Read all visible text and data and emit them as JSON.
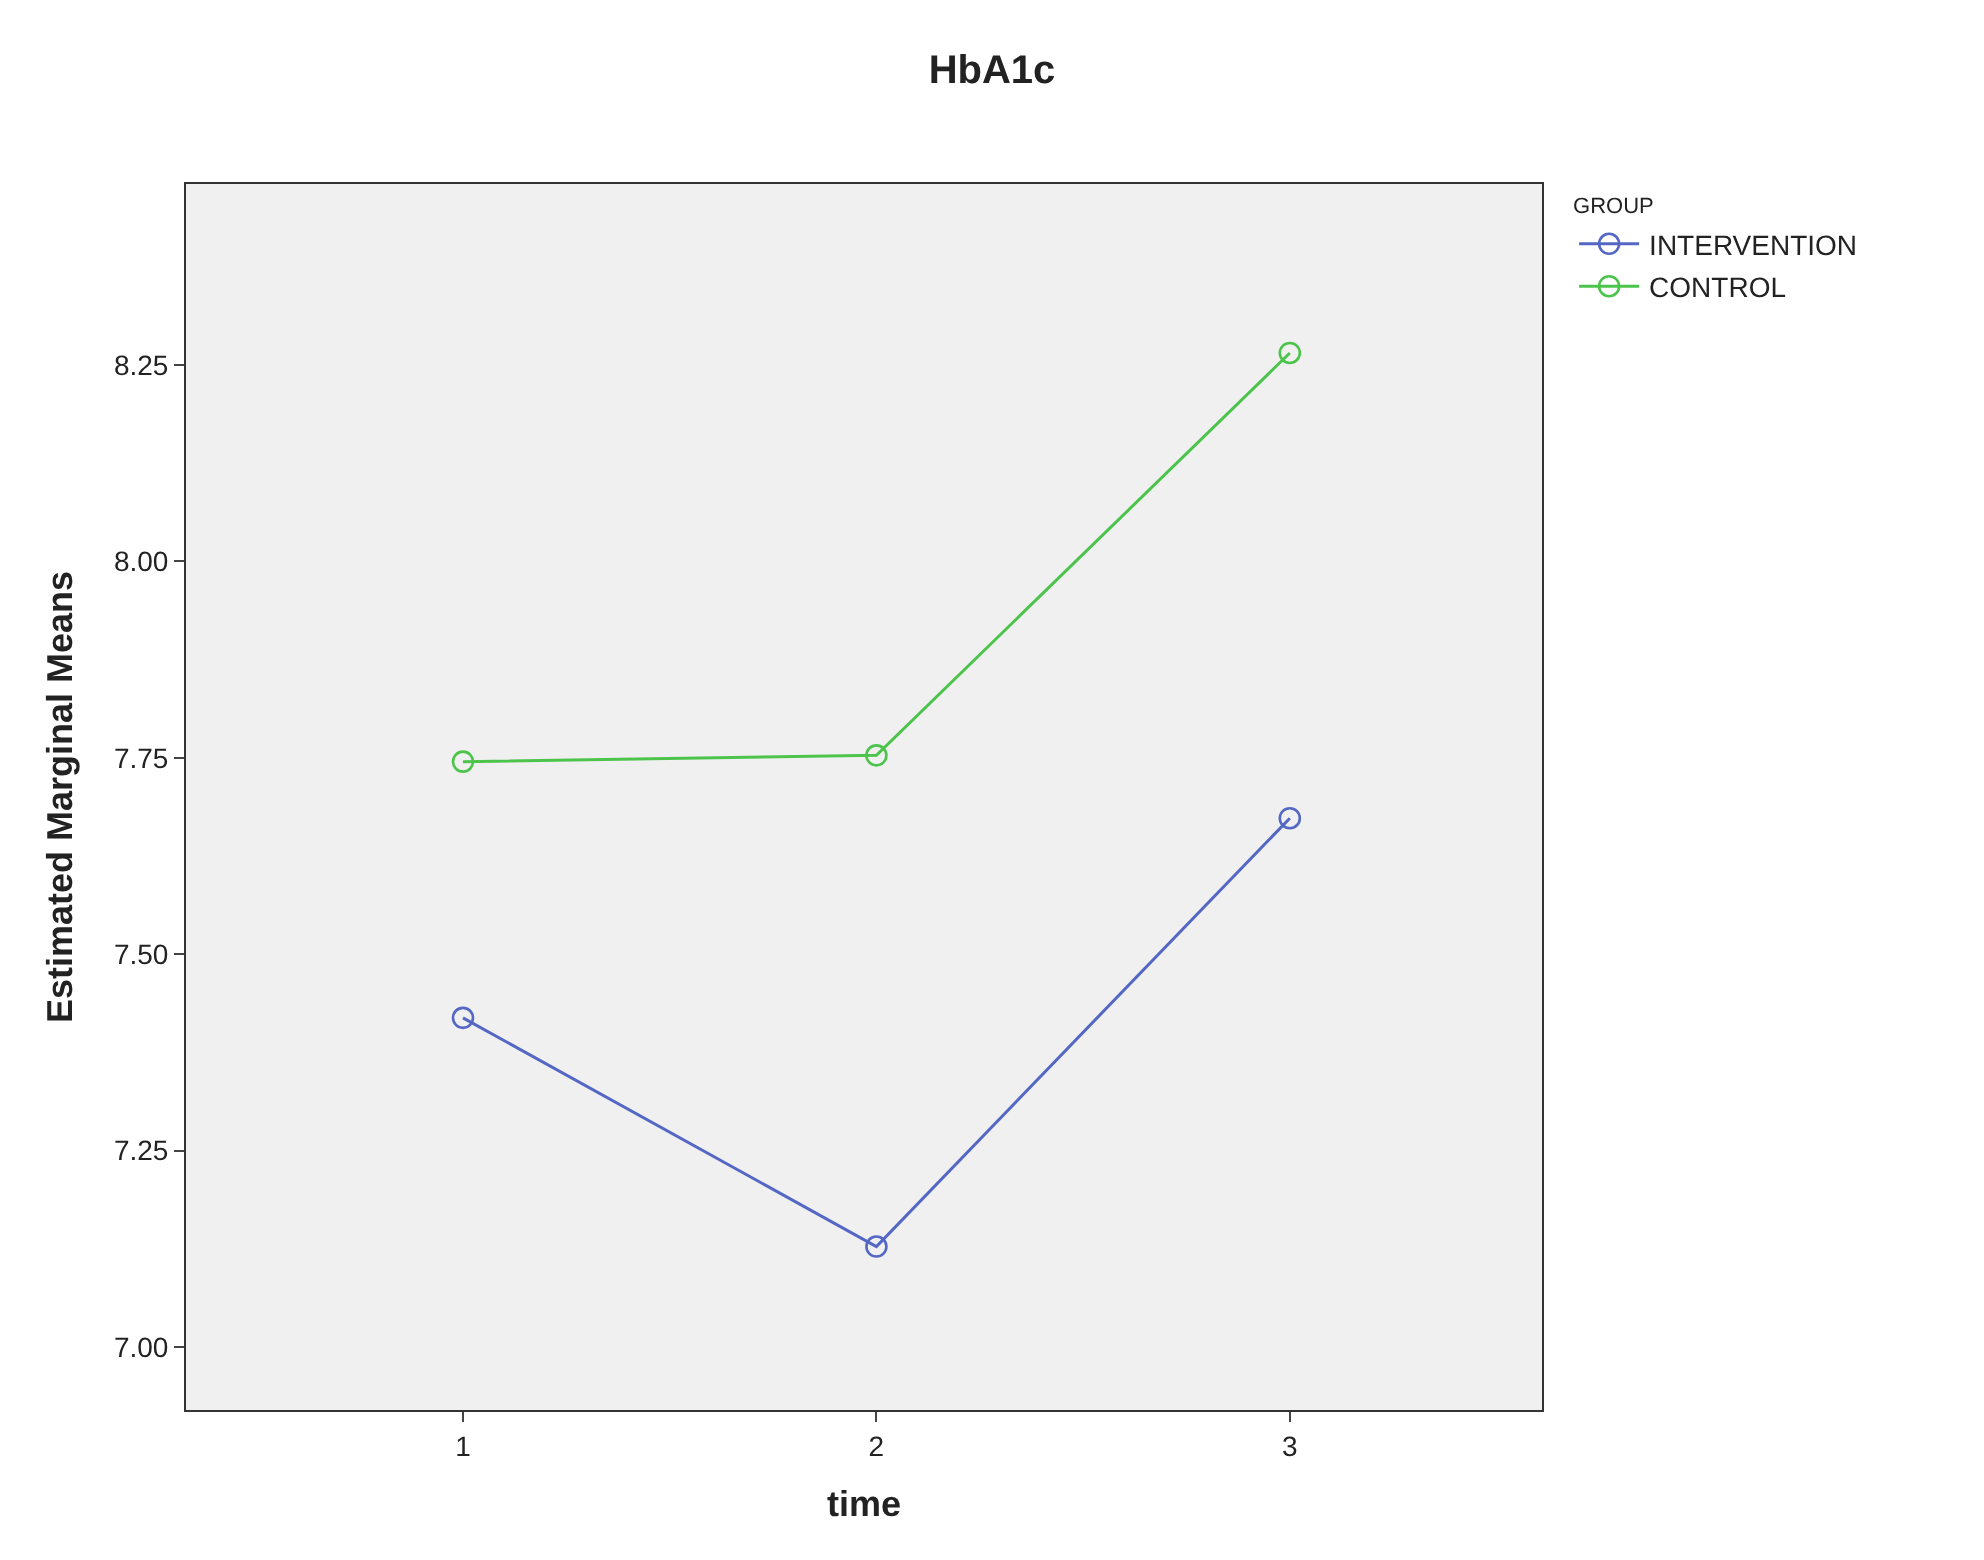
{
  "chart_data": {
    "type": "line",
    "title": "HbA1c",
    "xlabel": "time",
    "ylabel": "Estimated Marginal Means",
    "legend_title": "GROUP",
    "x": [
      1,
      2,
      3
    ],
    "series": [
      {
        "name": "INTERVENTION",
        "color": "#5467c4",
        "values": [
          7.419,
          7.128,
          7.673
        ]
      },
      {
        "name": "CONTROL",
        "color": "#4cc44c",
        "values": [
          7.745,
          7.753,
          8.265
        ]
      }
    ],
    "xlim": [
      0.33,
      3.61
    ],
    "xticks": [
      1,
      2,
      3
    ],
    "ylim": [
      6.92,
      8.48
    ],
    "yticks": [
      {
        "value": 7.0,
        "label": "7.00"
      },
      {
        "value": 7.25,
        "label": "7.25"
      },
      {
        "value": 7.5,
        "label": "7.50"
      },
      {
        "value": 7.75,
        "label": "7.75"
      },
      {
        "value": 8.0,
        "label": "8.00"
      },
      {
        "value": 8.25,
        "label": "8.25"
      }
    ],
    "grid": false,
    "legend": "top right",
    "marker": "circle",
    "line_style": "solid"
  }
}
